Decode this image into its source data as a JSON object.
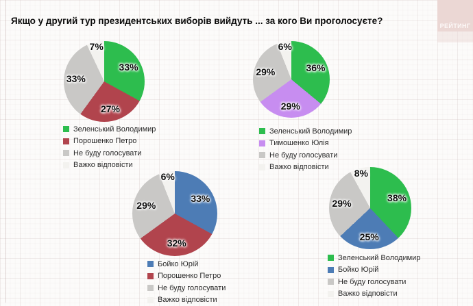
{
  "page": {
    "title": "Якщо у другий тур президентських виборів вийдуть ... за кого Ви проголосуєте?",
    "logo_text": "РЕЙТИНГ"
  },
  "colors": {
    "zelensky_green": "#2dbd4e",
    "poroshenko_red": "#b1444d",
    "tymoshenko_purple": "#c78df0",
    "boyko_blue": "#4d7cb5",
    "no_vote_gray": "#c9c8c6",
    "hard_to_answer_white": "#f3f2ef",
    "logo_pink": "#ebd7d4"
  },
  "chart_data": [
    {
      "type": "pie",
      "pairing": "Зеленський vs Порошенко",
      "labels": [
        "Зеленський Володимир",
        "Порошенко Петро",
        "Не буду голосувати",
        "Важко відповісти"
      ],
      "values": [
        33,
        27,
        33,
        7
      ],
      "value_labels": [
        "33%",
        "27%",
        "33%",
        "7%"
      ],
      "colors": [
        "#2dbd4e",
        "#b1444d",
        "#c9c8c6",
        "#f3f2ef"
      ],
      "legend_position": "bottom",
      "start_angle_deg": 0,
      "direction": "clockwise"
    },
    {
      "type": "pie",
      "pairing": "Зеленський vs Тимошенко",
      "labels": [
        "Зеленський Володимир",
        "Тимошенко Юлія",
        "Не буду голосувати",
        "Важко відповісти"
      ],
      "values": [
        36,
        29,
        29,
        6
      ],
      "value_labels": [
        "36%",
        "29%",
        "29%",
        "6%"
      ],
      "colors": [
        "#2dbd4e",
        "#c78df0",
        "#c9c8c6",
        "#f3f2ef"
      ],
      "legend_position": "bottom",
      "start_angle_deg": 0,
      "direction": "clockwise"
    },
    {
      "type": "pie",
      "pairing": "Бойко vs Порошенко",
      "labels": [
        "Бойко Юрій",
        "Порошенко Петро",
        "Не буду голосувати",
        "Важко відповісти"
      ],
      "values": [
        33,
        32,
        29,
        6
      ],
      "value_labels": [
        "33%",
        "32%",
        "29%",
        "6%"
      ],
      "colors": [
        "#4d7cb5",
        "#b1444d",
        "#c9c8c6",
        "#f3f2ef"
      ],
      "legend_position": "bottom",
      "start_angle_deg": 0,
      "direction": "clockwise"
    },
    {
      "type": "pie",
      "pairing": "Зеленський vs Бойко",
      "labels": [
        "Зеленський Володимир",
        "Бойко Юрій",
        "Не буду голосувати",
        "Важко відповісти"
      ],
      "values": [
        38,
        25,
        29,
        8
      ],
      "value_labels": [
        "38%",
        "25%",
        "29%",
        "8%"
      ],
      "colors": [
        "#2dbd4e",
        "#4d7cb5",
        "#c9c8c6",
        "#f3f2ef"
      ],
      "legend_position": "bottom",
      "start_angle_deg": 0,
      "direction": "clockwise"
    }
  ]
}
